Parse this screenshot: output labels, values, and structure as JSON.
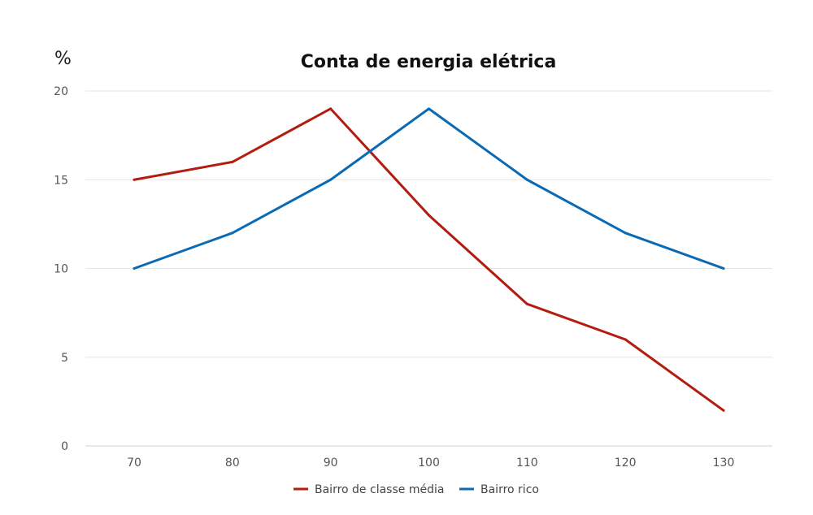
{
  "chart_data": {
    "type": "line",
    "title": "Conta de energia elétrica",
    "ylabel": "%",
    "xlabel": "",
    "categories": [
      "70",
      "80",
      "90",
      "100",
      "110",
      "120",
      "130"
    ],
    "yticks": [
      "0",
      "5",
      "10",
      "15",
      "20"
    ],
    "ylim": [
      0,
      20
    ],
    "grid": true,
    "legend_position": "bottom",
    "series": [
      {
        "name": "Bairro de classe média",
        "color": "#b31d10",
        "values": [
          15,
          16,
          19,
          13,
          8,
          6,
          2
        ]
      },
      {
        "name": "Bairro rico",
        "color": "#0b6ab4",
        "values": [
          10,
          12,
          15,
          19,
          15,
          12,
          10
        ]
      }
    ]
  }
}
